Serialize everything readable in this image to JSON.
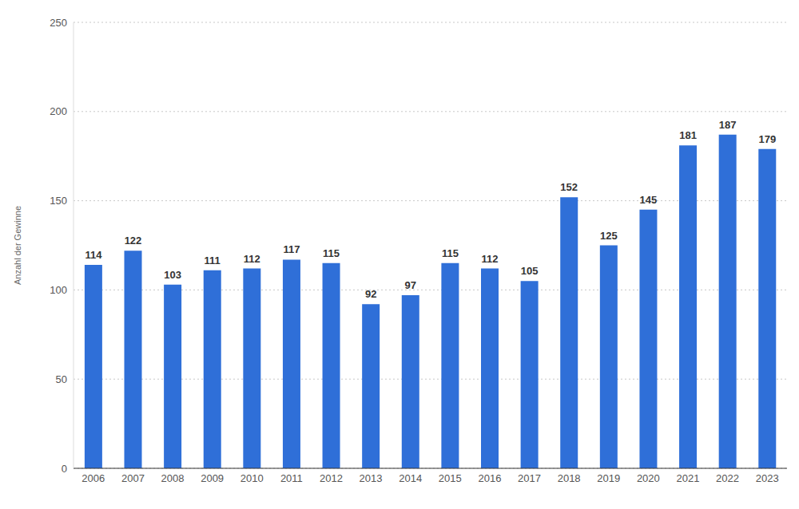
{
  "chart_data": {
    "type": "bar",
    "y_label": "Anzahl der Gewinne",
    "categories": [
      "2006",
      "2007",
      "2008",
      "2009",
      "2010",
      "2011",
      "2012",
      "2013",
      "2014",
      "2015",
      "2016",
      "2017",
      "2018",
      "2019",
      "2020",
      "2021",
      "2022",
      "2023"
    ],
    "values": [
      114,
      122,
      103,
      111,
      112,
      117,
      115,
      92,
      97,
      115,
      112,
      105,
      152,
      125,
      145,
      181,
      187,
      179
    ],
    "color": "#2f6fd8",
    "ylim": [
      0,
      250
    ],
    "yticks": [
      0,
      50,
      100,
      150,
      200,
      250
    ],
    "grid": true,
    "data_labels": true
  }
}
